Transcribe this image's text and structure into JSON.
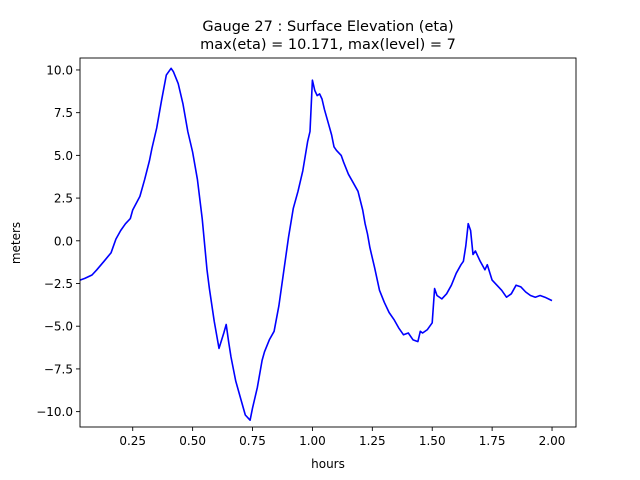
{
  "chart_data": {
    "type": "line",
    "title": "Gauge 27 : Surface Elevation (eta)",
    "subtitle": "max(eta) =  10.171,    max(level) = 7",
    "xlabel": "hours",
    "ylabel": "meters",
    "xlim": [
      0.03,
      2.1
    ],
    "ylim": [
      -10.9,
      10.7
    ],
    "x_ticks": [
      0.25,
      0.5,
      0.75,
      1.0,
      1.25,
      1.5,
      1.75,
      2.0
    ],
    "x_tick_labels": [
      "0.25",
      "0.50",
      "0.75",
      "1.00",
      "1.25",
      "1.50",
      "1.75",
      "2.00"
    ],
    "y_ticks": [
      -10.0,
      -7.5,
      -5.0,
      -2.5,
      0.0,
      2.5,
      5.0,
      7.5,
      10.0
    ],
    "y_tick_labels": [
      "−10.0",
      "−7.5",
      "−5.0",
      "−2.5",
      "0.0",
      "2.5",
      "5.0",
      "7.5",
      "10.0"
    ],
    "grid": false,
    "legend": "none",
    "series": [
      {
        "color": "#0000ff",
        "x": [
          0.03,
          0.05,
          0.08,
          0.1,
          0.13,
          0.16,
          0.18,
          0.2,
          0.22,
          0.24,
          0.25,
          0.28,
          0.3,
          0.32,
          0.33,
          0.35,
          0.37,
          0.39,
          0.41,
          0.42,
          0.44,
          0.46,
          0.48,
          0.5,
          0.52,
          0.54,
          0.56,
          0.57,
          0.59,
          0.61,
          0.63,
          0.64,
          0.65,
          0.66,
          0.68,
          0.7,
          0.72,
          0.74,
          0.75,
          0.77,
          0.79,
          0.8,
          0.82,
          0.84,
          0.86,
          0.88,
          0.9,
          0.92,
          0.94,
          0.96,
          0.98,
          0.99,
          1.0,
          1.01,
          1.02,
          1.03,
          1.04,
          1.05,
          1.06,
          1.07,
          1.08,
          1.09,
          1.1,
          1.12,
          1.13,
          1.15,
          1.17,
          1.19,
          1.21,
          1.22,
          1.23,
          1.24,
          1.26,
          1.28,
          1.3,
          1.32,
          1.34,
          1.36,
          1.38,
          1.4,
          1.42,
          1.44,
          1.45,
          1.46,
          1.48,
          1.5,
          1.51,
          1.52,
          1.54,
          1.56,
          1.58,
          1.6,
          1.62,
          1.63,
          1.64,
          1.65,
          1.66,
          1.67,
          1.68,
          1.7,
          1.72,
          1.73,
          1.75,
          1.77,
          1.79,
          1.81,
          1.83,
          1.85,
          1.87,
          1.89,
          1.91,
          1.93,
          1.95,
          1.97,
          2.0
        ],
        "y": [
          -2.3,
          -2.2,
          -2.0,
          -1.7,
          -1.2,
          -0.7,
          0.1,
          0.6,
          1.0,
          1.3,
          1.8,
          2.6,
          3.6,
          4.7,
          5.4,
          6.6,
          8.2,
          9.7,
          10.1,
          9.9,
          9.2,
          8.0,
          6.4,
          5.2,
          3.6,
          1.3,
          -1.7,
          -2.8,
          -4.7,
          -6.3,
          -5.4,
          -4.9,
          -5.9,
          -6.8,
          -8.2,
          -9.2,
          -10.2,
          -10.5,
          -9.8,
          -8.6,
          -7.0,
          -6.5,
          -5.8,
          -5.3,
          -3.8,
          -1.8,
          0.2,
          1.9,
          2.9,
          4.1,
          5.8,
          6.4,
          9.4,
          8.8,
          8.5,
          8.6,
          8.3,
          7.7,
          7.2,
          6.7,
          6.2,
          5.5,
          5.3,
          5.0,
          4.6,
          3.9,
          3.4,
          2.9,
          1.8,
          1.0,
          0.4,
          -0.4,
          -1.6,
          -2.9,
          -3.6,
          -4.2,
          -4.6,
          -5.1,
          -5.5,
          -5.4,
          -5.8,
          -5.9,
          -5.3,
          -5.4,
          -5.2,
          -4.8,
          -2.8,
          -3.2,
          -3.4,
          -3.1,
          -2.6,
          -1.9,
          -1.4,
          -1.2,
          -0.3,
          1.0,
          0.6,
          -0.8,
          -0.6,
          -1.2,
          -1.7,
          -1.4,
          -2.3,
          -2.6,
          -2.9,
          -3.3,
          -3.1,
          -2.6,
          -2.7,
          -3.0,
          -3.2,
          -3.3,
          -3.2,
          -3.3,
          -3.5
        ]
      }
    ]
  }
}
